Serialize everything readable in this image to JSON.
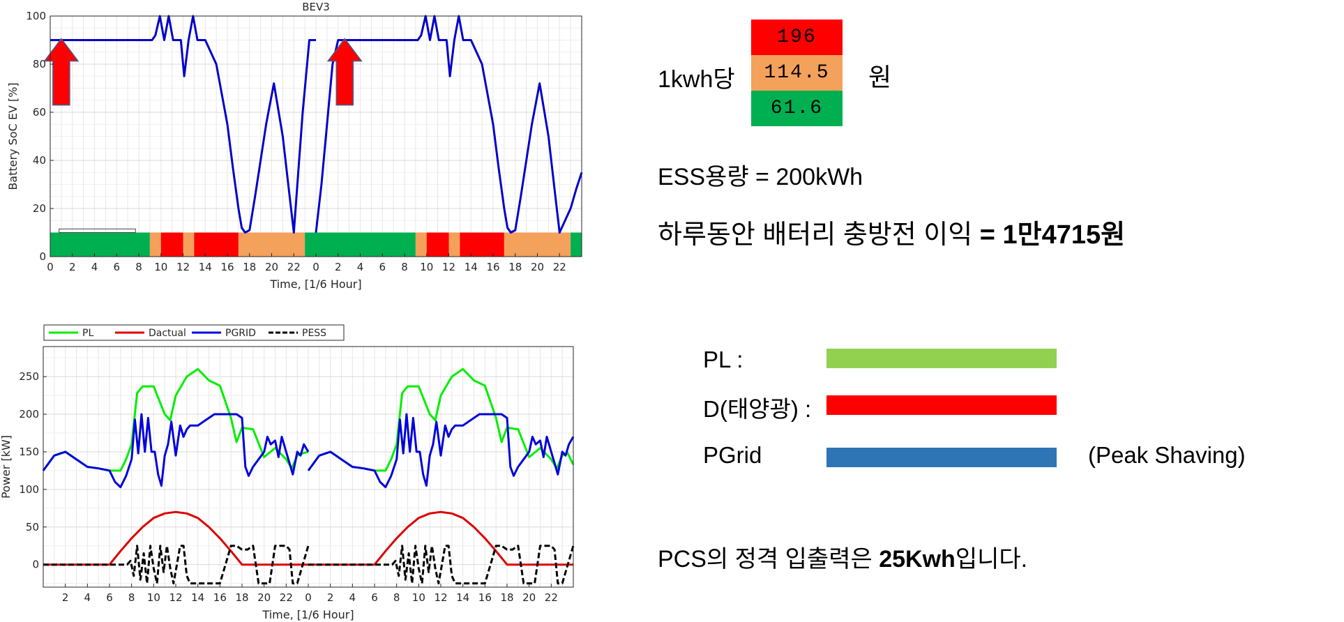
{
  "chart_data": [
    {
      "type": "line",
      "title": "BEV3",
      "xlabel": "Time, [1/6 Hour]",
      "ylabel": "Battery SoC EV [%]",
      "xlim": [
        0,
        24
      ],
      "ylim": [
        0,
        100
      ],
      "xticks": [
        "0",
        "2",
        "4",
        "6",
        "8",
        "10",
        "12",
        "14",
        "16",
        "18",
        "20",
        "22"
      ],
      "yticks": [
        "0",
        "20",
        "40",
        "60",
        "80",
        "100"
      ],
      "grid": true,
      "series": [
        {
          "color": "#0000cc",
          "x": [
            0,
            1,
            2,
            3,
            4,
            5,
            6,
            7,
            8,
            8.4,
            8.9,
            9.2,
            9.5,
            9.9,
            10.3,
            10.7,
            11.1,
            11.5,
            11.8,
            12.1,
            12.5,
            12.9,
            13.3,
            14,
            15,
            16,
            16.5,
            17,
            17.3,
            17.6,
            18,
            18.5,
            19.5,
            20.2,
            21,
            21.5,
            22,
            22.4,
            22.8,
            23.4,
            24
          ],
          "y": [
            90,
            90,
            90,
            90,
            90,
            90,
            90,
            90,
            90,
            90,
            90,
            90,
            92,
            100,
            90,
            100,
            90,
            90,
            90,
            75,
            90,
            100,
            90,
            90,
            80,
            55,
            37,
            20,
            12,
            10,
            11,
            25,
            55,
            72,
            50,
            30,
            10,
            35,
            60,
            90,
            90
          ]
        },
        {
          "color": "#0000cc",
          "x": [
            0,
            0.5,
            1,
            1.5,
            2,
            3,
            4,
            5,
            6,
            7,
            8,
            8.4,
            8.9,
            9.2,
            9.5,
            9.9,
            10.3,
            10.7,
            11.1,
            11.5,
            11.8,
            12.1,
            12.5,
            12.9,
            13.3,
            14,
            15,
            16,
            16.5,
            17,
            17.3,
            17.6,
            18,
            18.5,
            19.5,
            20.2,
            21,
            21.5,
            22,
            22.5,
            23,
            23.5,
            24
          ],
          "y": [
            10,
            30,
            55,
            80,
            90,
            90,
            90,
            90,
            90,
            90,
            90,
            90,
            90,
            90,
            92,
            100,
            90,
            100,
            90,
            90,
            90,
            75,
            90,
            100,
            90,
            90,
            80,
            55,
            37,
            20,
            12,
            10,
            11,
            25,
            55,
            72,
            50,
            30,
            10,
            15,
            20,
            28,
            35
          ]
        }
      ],
      "tariff_bands": [
        {
          "from": 0,
          "to": 9,
          "level": "low"
        },
        {
          "from": 9,
          "to": 10,
          "level": "mid"
        },
        {
          "from": 10,
          "to": 12,
          "level": "high"
        },
        {
          "from": 12,
          "to": 13,
          "level": "mid"
        },
        {
          "from": 13,
          "to": 17,
          "level": "high"
        },
        {
          "from": 17,
          "to": 23,
          "level": "mid"
        },
        {
          "from": 23,
          "to": 24,
          "level": "low"
        },
        {
          "from": 0,
          "to": 9,
          "level": "low",
          "panel": 2
        },
        {
          "from": 9,
          "to": 10,
          "level": "mid",
          "panel": 2
        },
        {
          "from": 10,
          "to": 12,
          "level": "high",
          "panel": 2
        },
        {
          "from": 12,
          "to": 13,
          "level": "mid",
          "panel": 2
        },
        {
          "from": 13,
          "to": 17,
          "level": "high",
          "panel": 2
        },
        {
          "from": 17,
          "to": 23,
          "level": "mid",
          "panel": 2
        },
        {
          "from": 23,
          "to": 24,
          "level": "low",
          "panel": 2
        }
      ],
      "band_colors": {
        "low": "#00b050",
        "mid": "#f4a15c",
        "high": "#ff0000"
      },
      "annotations": [
        {
          "type": "up-arrow",
          "panel": 1,
          "x": 1,
          "y_from": 63,
          "y_to": 90,
          "color": "#ff0000"
        },
        {
          "type": "up-arrow",
          "panel": 2,
          "x": 2.6,
          "y_from": 63,
          "y_to": 90,
          "color": "#ff0000"
        }
      ]
    },
    {
      "type": "line",
      "xlabel": "Time, [1/6 Hour]",
      "ylabel": "Power [kW]",
      "xlim": [
        0,
        24
      ],
      "ylim": [
        -30,
        290
      ],
      "xticks": [
        "2",
        "4",
        "6",
        "8",
        "10",
        "12",
        "14",
        "16",
        "18",
        "20",
        "22",
        "0",
        "2",
        "4",
        "6",
        "8",
        "10",
        "12",
        "14",
        "16",
        "18",
        "20",
        "22"
      ],
      "yticks": [
        "0",
        "50",
        "100",
        "150",
        "200",
        "250"
      ],
      "grid": true,
      "legend": "top-left",
      "series": [
        {
          "name": "PL",
          "color": "#00ee00",
          "x": [
            0,
            1,
            2,
            3,
            4,
            5,
            6,
            7,
            7.5,
            8,
            8.5,
            9,
            10,
            11,
            11.5,
            12,
            13,
            14,
            15,
            16,
            17,
            17.5,
            18,
            19,
            20,
            21,
            22,
            22.5,
            23,
            23.5,
            24
          ],
          "y": [
            125,
            145,
            150,
            140,
            130,
            128,
            125,
            125,
            140,
            160,
            228,
            237,
            237,
            200,
            192,
            225,
            250,
            260,
            245,
            238,
            195,
            163,
            182,
            180,
            143,
            155,
            140,
            128,
            145,
            148,
            150
          ],
          "x2": [
            0,
            1,
            2,
            3,
            4,
            5,
            6,
            7,
            7.5,
            8,
            8.5,
            9,
            10,
            11,
            11.5,
            12,
            13,
            14,
            15,
            16,
            17,
            17.5,
            18,
            19,
            20,
            21,
            22,
            22.5,
            23,
            23.5,
            24
          ],
          "y2": [
            125,
            145,
            150,
            140,
            130,
            128,
            125,
            125,
            140,
            160,
            228,
            237,
            237,
            200,
            192,
            225,
            250,
            260,
            245,
            238,
            195,
            163,
            182,
            180,
            143,
            155,
            140,
            128,
            145,
            148,
            133
          ]
        },
        {
          "name": "Dactual",
          "color": "#dd0000",
          "x": [
            0,
            6,
            7,
            8,
            9,
            10,
            11,
            12,
            13,
            14,
            15,
            16,
            17,
            18,
            24
          ],
          "y": [
            0,
            0,
            18,
            35,
            50,
            62,
            68,
            70,
            68,
            62,
            50,
            35,
            18,
            0,
            0
          ]
        },
        {
          "name": "PGRID",
          "color": "#0000dd",
          "x": [
            0,
            1,
            2,
            3,
            4,
            5,
            6,
            6.5,
            7,
            7.5,
            8,
            8.3,
            8.6,
            8.9,
            9.2,
            9.5,
            9.8,
            10.1,
            10.4,
            10.7,
            11,
            11.3,
            11.6,
            12,
            12.4,
            12.7,
            13,
            13.3,
            13.6,
            14,
            14.5,
            15,
            15.5,
            16,
            16.5,
            17,
            17.5,
            18,
            18.3,
            18.6,
            19,
            19.5,
            20,
            20.3,
            20.6,
            21,
            21.3,
            21.6,
            22,
            22.3,
            22.6,
            23,
            23.3,
            23.6,
            24
          ],
          "y": [
            125,
            145,
            150,
            140,
            130,
            128,
            125,
            110,
            103,
            118,
            140,
            193,
            148,
            200,
            150,
            195,
            150,
            150,
            120,
            105,
            145,
            160,
            190,
            145,
            185,
            170,
            180,
            185,
            185,
            185,
            190,
            195,
            200,
            200,
            200,
            200,
            200,
            195,
            130,
            118,
            130,
            140,
            150,
            170,
            160,
            165,
            143,
            170,
            150,
            135,
            120,
            150,
            145,
            160,
            150
          ],
          "y2_end": 170
        },
        {
          "name": "PESS",
          "color": "#000000",
          "dashed": true,
          "x": [
            0,
            6,
            7,
            7.3,
            7.6,
            7.9,
            8.2,
            8.5,
            8.8,
            9.1,
            9.4,
            9.7,
            10,
            10.3,
            10.6,
            10.9,
            11.2,
            11.5,
            11.8,
            12.1,
            12.4,
            12.7,
            13,
            13.3,
            13.6,
            14,
            15,
            16,
            16.5,
            17,
            17.5,
            18,
            18.5,
            19,
            19.5,
            20,
            20.5,
            21,
            22,
            22.3,
            22.6,
            23,
            24
          ],
          "y": [
            0,
            0,
            0,
            0,
            0,
            5,
            -15,
            25,
            -20,
            15,
            -25,
            25,
            -5,
            -25,
            25,
            -10,
            25,
            -5,
            -25,
            0,
            25,
            25,
            -15,
            -25,
            -25,
            -25,
            -25,
            -25,
            0,
            25,
            25,
            20,
            20,
            25,
            -25,
            -25,
            -25,
            25,
            25,
            20,
            -25,
            -25,
            25
          ]
        }
      ]
    }
  ],
  "price": {
    "label": "1kwh당",
    "high": "196",
    "mid": "114.5",
    "low": "61.6",
    "unit": "원"
  },
  "ess": {
    "text": "ESS용량 = 200kWh"
  },
  "profit": {
    "prefix": "하루동안 배터리 충방전 이익 ",
    "value": "= 1만4715원"
  },
  "legend_panel": {
    "pl_label": "PL :",
    "pl_color": "#92d050",
    "d_label": "D(태양광) :",
    "d_color": "#ff0000",
    "pgrid_label": "PGrid",
    "pgrid_color": "#2e75b6",
    "peak_label": "(Peak Shaving)"
  },
  "pcs": {
    "prefix": "PCS의 정격 입출력은 ",
    "value": "25Kwh",
    "suffix": "입니다."
  }
}
